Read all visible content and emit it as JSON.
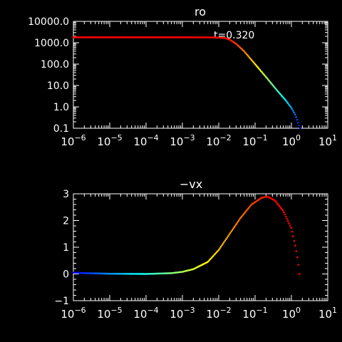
{
  "chart_data": [
    {
      "type": "scatter",
      "title": "ro",
      "annotation": "t=0.320",
      "x_scale": "log",
      "y_scale": "log",
      "xlim": [
        1e-06,
        10
      ],
      "ylim": [
        0.1,
        10000
      ],
      "x_ticks": [
        {
          "value": 1e-06,
          "base": "10",
          "exp": "−6"
        },
        {
          "value": 1e-05,
          "base": "10",
          "exp": "−5"
        },
        {
          "value": 0.0001,
          "base": "10",
          "exp": "−4"
        },
        {
          "value": 0.001,
          "base": "10",
          "exp": "−3"
        },
        {
          "value": 0.01,
          "base": "10",
          "exp": "−2"
        },
        {
          "value": 0.1,
          "base": "10",
          "exp": "−1"
        },
        {
          "value": 1,
          "base": "10",
          "exp": "0"
        },
        {
          "value": 10,
          "base": "10",
          "exp": "1"
        }
      ],
      "y_ticks": [
        {
          "value": 0.1,
          "label": "0.1"
        },
        {
          "value": 1,
          "label": "1.0"
        },
        {
          "value": 10,
          "label": "10.0"
        },
        {
          "value": 100,
          "label": "100.0"
        },
        {
          "value": 1000,
          "label": "1000.0"
        },
        {
          "value": 10000,
          "label": "10000.0"
        }
      ],
      "points": [
        {
          "x": 1e-06,
          "y": 1800
        },
        {
          "x": 1e-05,
          "y": 1800
        },
        {
          "x": 0.0001,
          "y": 1800
        },
        {
          "x": 0.001,
          "y": 1800
        },
        {
          "x": 0.005,
          "y": 1790
        },
        {
          "x": 0.01,
          "y": 1750
        },
        {
          "x": 0.015,
          "y": 1650
        },
        {
          "x": 0.02,
          "y": 1400
        },
        {
          "x": 0.03,
          "y": 900
        },
        {
          "x": 0.05,
          "y": 400
        },
        {
          "x": 0.1,
          "y": 100
        },
        {
          "x": 0.2,
          "y": 25
        },
        {
          "x": 0.4,
          "y": 6
        },
        {
          "x": 0.7,
          "y": 2
        },
        {
          "x": 1.0,
          "y": 0.9
        },
        {
          "x": 1.3,
          "y": 0.4
        },
        {
          "x": 1.6,
          "y": 0.15
        },
        {
          "x": 1.75,
          "y": 0.1
        }
      ],
      "colormap": [
        "#0000ff",
        "#00ffff",
        "#ffff00",
        "#ff0000"
      ]
    },
    {
      "type": "scatter",
      "title": "−vx",
      "x_scale": "log",
      "y_scale": "linear",
      "xlim": [
        1e-06,
        10
      ],
      "ylim": [
        -1,
        3
      ],
      "x_ticks": [
        {
          "value": 1e-06,
          "base": "10",
          "exp": "−6"
        },
        {
          "value": 1e-05,
          "base": "10",
          "exp": "−5"
        },
        {
          "value": 0.0001,
          "base": "10",
          "exp": "−4"
        },
        {
          "value": 0.001,
          "base": "10",
          "exp": "−3"
        },
        {
          "value": 0.01,
          "base": "10",
          "exp": "−2"
        },
        {
          "value": 0.1,
          "base": "10",
          "exp": "−1"
        },
        {
          "value": 1,
          "base": "10",
          "exp": "0"
        },
        {
          "value": 10,
          "base": "10",
          "exp": "1"
        }
      ],
      "y_ticks": [
        {
          "value": -1,
          "label": "−1"
        },
        {
          "value": 0,
          "label": "0"
        },
        {
          "value": 1,
          "label": "1"
        },
        {
          "value": 2,
          "label": "2"
        },
        {
          "value": 3,
          "label": "3"
        }
      ],
      "points": [
        {
          "x": 1e-06,
          "y": 0.05
        },
        {
          "x": 2e-06,
          "y": 0.03
        },
        {
          "x": 1e-05,
          "y": 0.01
        },
        {
          "x": 0.0001,
          "y": 0.0
        },
        {
          "x": 0.0005,
          "y": 0.03
        },
        {
          "x": 0.001,
          "y": 0.08
        },
        {
          "x": 0.002,
          "y": 0.18
        },
        {
          "x": 0.005,
          "y": 0.45
        },
        {
          "x": 0.01,
          "y": 0.9
        },
        {
          "x": 0.02,
          "y": 1.5
        },
        {
          "x": 0.04,
          "y": 2.1
        },
        {
          "x": 0.08,
          "y": 2.6
        },
        {
          "x": 0.15,
          "y": 2.85
        },
        {
          "x": 0.22,
          "y": 2.9
        },
        {
          "x": 0.35,
          "y": 2.75
        },
        {
          "x": 0.6,
          "y": 2.35
        },
        {
          "x": 1.0,
          "y": 1.7
        },
        {
          "x": 1.3,
          "y": 1.0
        },
        {
          "x": 1.5,
          "y": 0.5
        },
        {
          "x": 1.65,
          "y": 0.0
        }
      ],
      "colormap": [
        "#0000ff",
        "#00ffff",
        "#ffff00",
        "#ff0000"
      ]
    }
  ]
}
